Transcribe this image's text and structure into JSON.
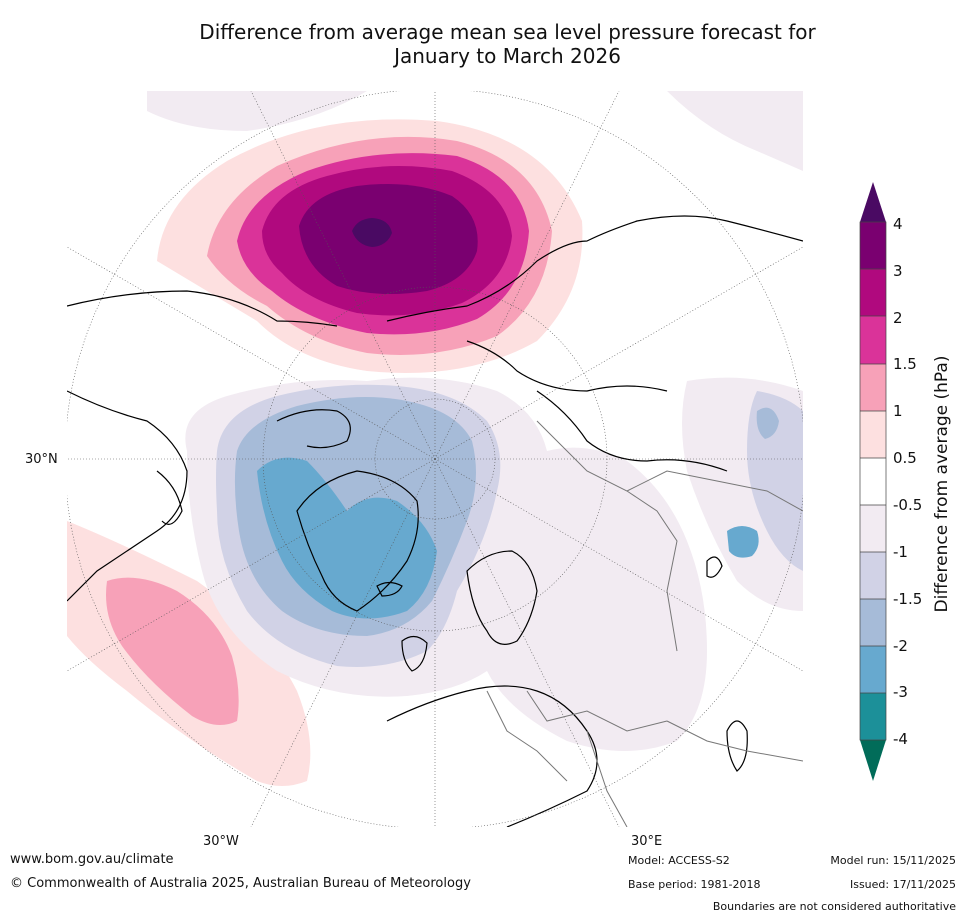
{
  "title": {
    "line1": "Difference from average mean sea level pressure forecast for",
    "line2": "January to March 2026"
  },
  "map": {
    "projection": "north-polar-stereographic",
    "label_30n": "30°N",
    "label_30w": "30°W",
    "label_30e": "30°E"
  },
  "legend": {
    "title": "Difference from average (hPa)",
    "ticks": [
      "4",
      "3",
      "2",
      "1.5",
      "1",
      "0.5",
      "-0.5",
      "-1",
      "-1.5",
      "-2",
      "-3",
      "-4"
    ],
    "colors": {
      "above_4": "#4a0a63",
      "c3_4": "#7a0070",
      "c2_3": "#b0097e",
      "c15_2": "#da3399",
      "c1_15": "#f7a1b8",
      "c05_1": "#fde0e0",
      "neutral": "#ffffff",
      "cm1_m05": "#f2ebf2",
      "cm15_m1": "#d1d2e6",
      "cm2_m15": "#a6bbd8",
      "cm3_m2": "#67a9cf",
      "cm4_m3": "#1c9099",
      "below_m4": "#016c59"
    }
  },
  "footer": {
    "website": "www.bom.gov.au/climate",
    "copyright": "© Commonwealth of Australia 2025, Australian Bureau of Meteorology",
    "model": "Model: ACCESS-S2",
    "base_period": "Base period: 1981-2018",
    "model_run": "Model run: 15/11/2025",
    "issued": "Issued: 17/11/2025",
    "disclaimer": "Boundaries are not considered authoritative"
  }
}
